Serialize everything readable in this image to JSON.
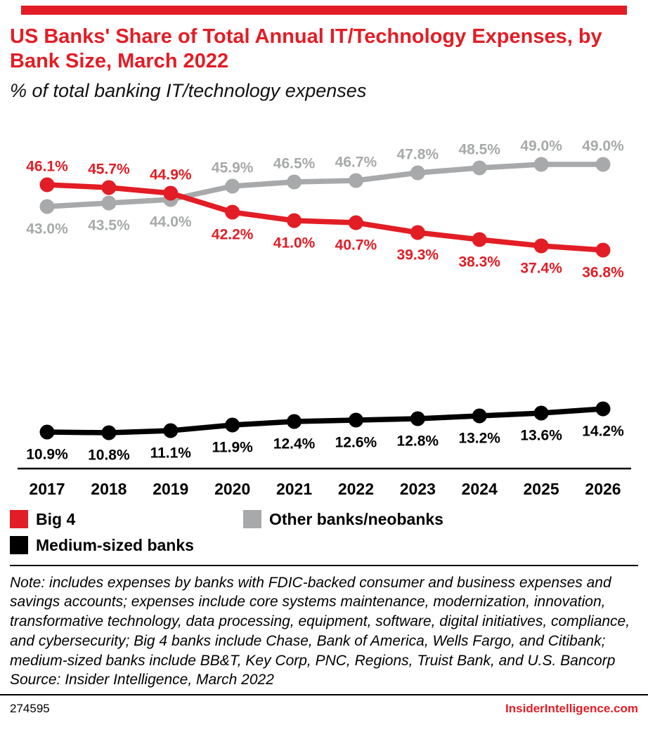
{
  "chart_data": {
    "type": "line",
    "title": "US Banks' Share of Total Annual IT/Technology Expenses, by Bank Size, March 2022",
    "subtitle": "% of total banking IT/technology expenses",
    "x": [
      "2017",
      "2018",
      "2019",
      "2020",
      "2021",
      "2022",
      "2023",
      "2024",
      "2025",
      "2026"
    ],
    "series": [
      {
        "name": "Big 4",
        "color": "#e21d25",
        "values": [
          46.1,
          45.7,
          44.9,
          42.2,
          41.0,
          40.7,
          39.3,
          38.3,
          37.4,
          36.8
        ],
        "label_placement": [
          "above",
          "above",
          "above",
          "below",
          "below",
          "below",
          "below",
          "below",
          "below",
          "below"
        ]
      },
      {
        "name": "Other banks/neobanks",
        "color": "#a7a9aa",
        "values": [
          43.0,
          43.5,
          44.0,
          45.9,
          46.5,
          46.7,
          47.8,
          48.5,
          49.0,
          49.0
        ],
        "label_placement": [
          "below",
          "below",
          "below",
          "above",
          "above",
          "above",
          "above",
          "above",
          "above",
          "above"
        ]
      },
      {
        "name": "Medium-sized banks",
        "color": "#000000",
        "values": [
          10.9,
          10.8,
          11.1,
          11.9,
          12.4,
          12.6,
          12.8,
          13.2,
          13.6,
          14.2
        ],
        "label_placement": [
          "below",
          "below",
          "below",
          "below",
          "below",
          "below",
          "below",
          "below",
          "below",
          "below"
        ]
      }
    ],
    "ylim": [
      0,
      55
    ],
    "grid": false,
    "legend_position": "bottom-left",
    "value_label_format": "{v}%"
  },
  "note": "Note: includes expenses by banks with FDIC-backed consumer and business expenses and savings accounts; expenses include core systems maintenance, modernization, innovation, transformative technology, data processing, equipment, software, digital initiatives, compliance, and cybersecurity; Big 4 banks include Chase, Bank of America, Wells Fargo, and Citibank; medium-sized banks include BB&T, Key Corp, PNC, Regions, Truist Bank, and U.S. Bancorp",
  "source": "Source: Insider Intelligence, March 2022",
  "footer": {
    "chart_id": "274595",
    "site": "InsiderIntelligence.com"
  }
}
